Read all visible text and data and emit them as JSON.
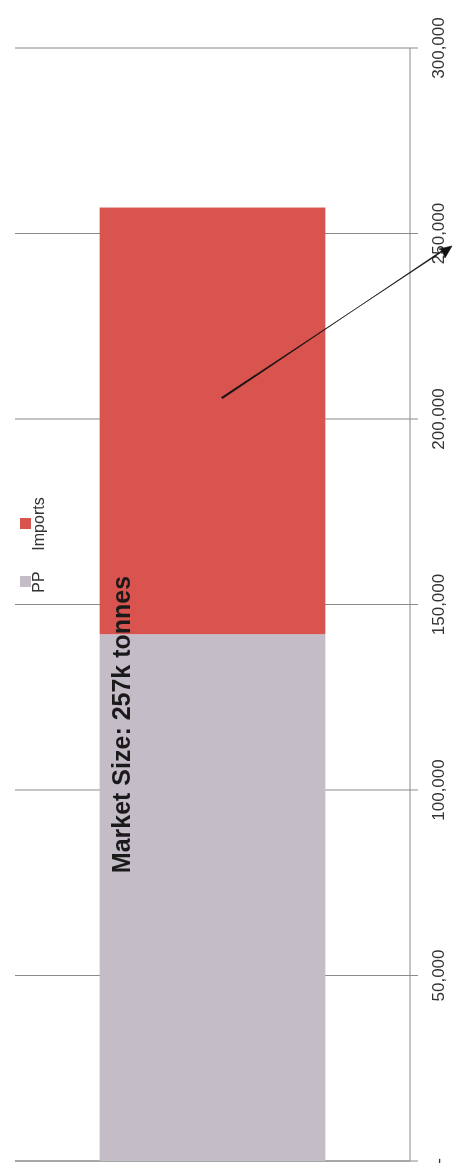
{
  "chart_data": {
    "type": "bar",
    "stacked": true,
    "categories": [
      null
    ],
    "series": [
      {
        "name": "PP",
        "color": "#c4bcc6",
        "values": [
          142000
        ]
      },
      {
        "name": "Imports",
        "color": "#d9544f",
        "values": [
          115000
        ]
      }
    ],
    "ylim": [
      0,
      300000
    ],
    "yticks": [
      {
        "value": 0,
        "label": "-"
      },
      {
        "value": 50000,
        "label": "50,000"
      },
      {
        "value": 100000,
        "label": "100,000"
      },
      {
        "value": 150000,
        "label": "150,000"
      },
      {
        "value": 200000,
        "label": "200,000"
      },
      {
        "value": 250000,
        "label": "250,000"
      },
      {
        "value": 300000,
        "label": "300,000"
      }
    ],
    "grid": "y",
    "legend": "left",
    "tick_labels": "y",
    "annotations": [
      "Market Size: 257k tonnes"
    ]
  }
}
